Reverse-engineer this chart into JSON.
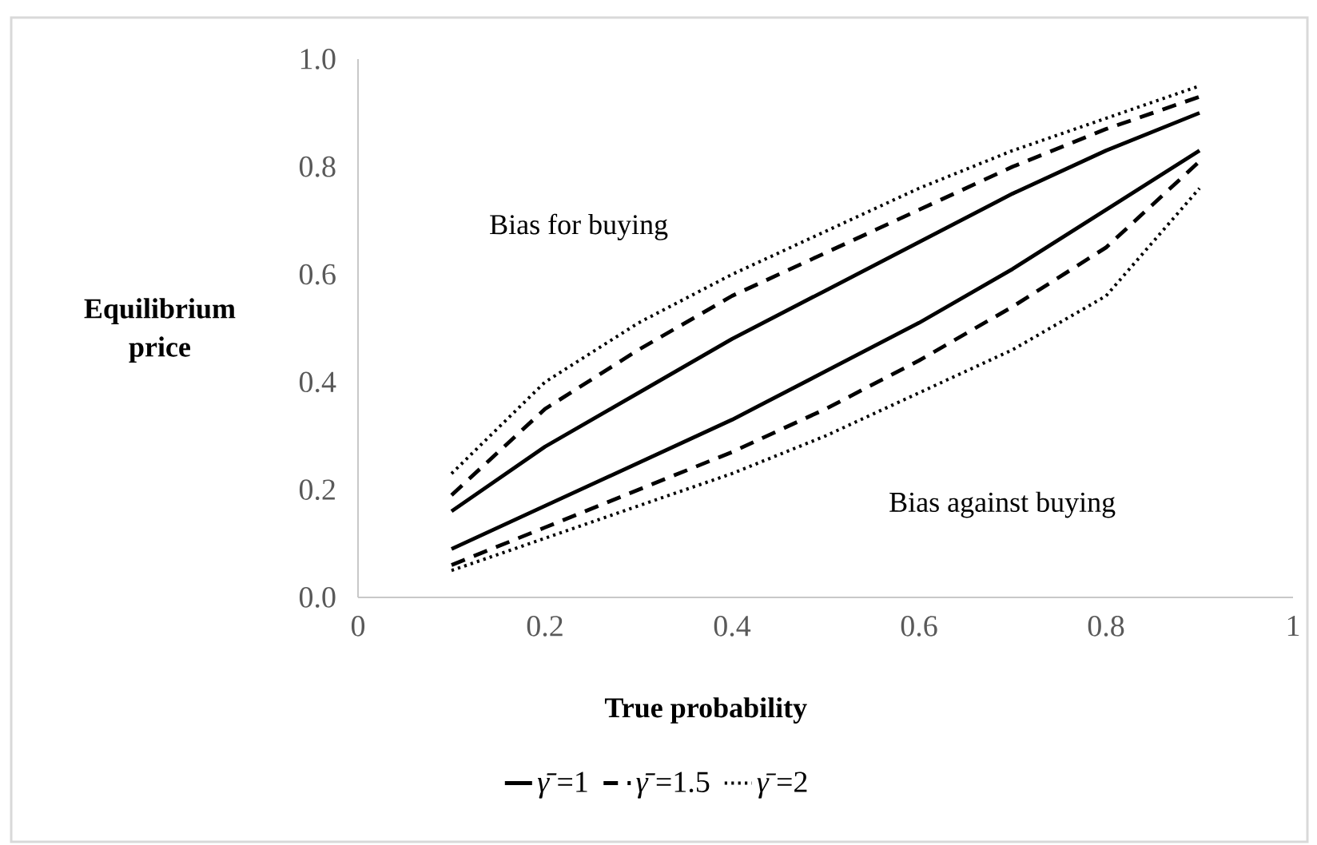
{
  "chart_data": {
    "type": "line",
    "xlabel": "True probability",
    "ylabel": "Equilibrium price",
    "annotations": [
      "Bias for buying",
      "Bias against buying"
    ],
    "x": [
      0.1,
      0.2,
      0.3,
      0.4,
      0.5,
      0.6,
      0.7,
      0.8,
      0.9
    ],
    "series": [
      {
        "name": "*γ̄*=1",
        "color": "#000000",
        "line_style": "solid",
        "values": [
          0.16,
          0.28,
          0.38,
          0.48,
          0.57,
          0.66,
          0.75,
          0.83,
          0.9
        ]
      },
      {
        "color": "#000000",
        "line_style": "solid",
        "values": [
          0.09,
          0.17,
          0.25,
          0.33,
          0.42,
          0.51,
          0.61,
          0.72,
          0.83
        ]
      },
      {
        "name": "*γ̄*=1.5",
        "color": "#000000",
        "line_style": "dashed",
        "values": [
          0.19,
          0.35,
          0.46,
          0.56,
          0.64,
          0.72,
          0.8,
          0.87,
          0.93
        ]
      },
      {
        "color": "#000000",
        "line_style": "dashed",
        "values": [
          0.06,
          0.13,
          0.2,
          0.27,
          0.35,
          0.44,
          0.54,
          0.65,
          0.81
        ]
      },
      {
        "name": "*γ̄*=2",
        "color": "#000000",
        "line_style": "dotted",
        "values": [
          0.23,
          0.4,
          0.51,
          0.6,
          0.68,
          0.76,
          0.83,
          0.89,
          0.95
        ]
      },
      {
        "color": "#000000",
        "line_style": "dotted",
        "values": [
          0.05,
          0.11,
          0.17,
          0.23,
          0.3,
          0.38,
          0.46,
          0.56,
          0.76
        ]
      }
    ],
    "xlim": [
      0,
      1
    ],
    "xticks": [
      0,
      0.2,
      0.4,
      0.6,
      0.8,
      1
    ],
    "ylim": [
      0,
      1
    ],
    "yticks": [
      {
        "value": 0,
        "label": "0.0"
      },
      0.2,
      0.4,
      0.6,
      0.8,
      {
        "value": 1,
        "label": "1.0"
      }
    ],
    "grid": false,
    "legend": "bottom"
  }
}
